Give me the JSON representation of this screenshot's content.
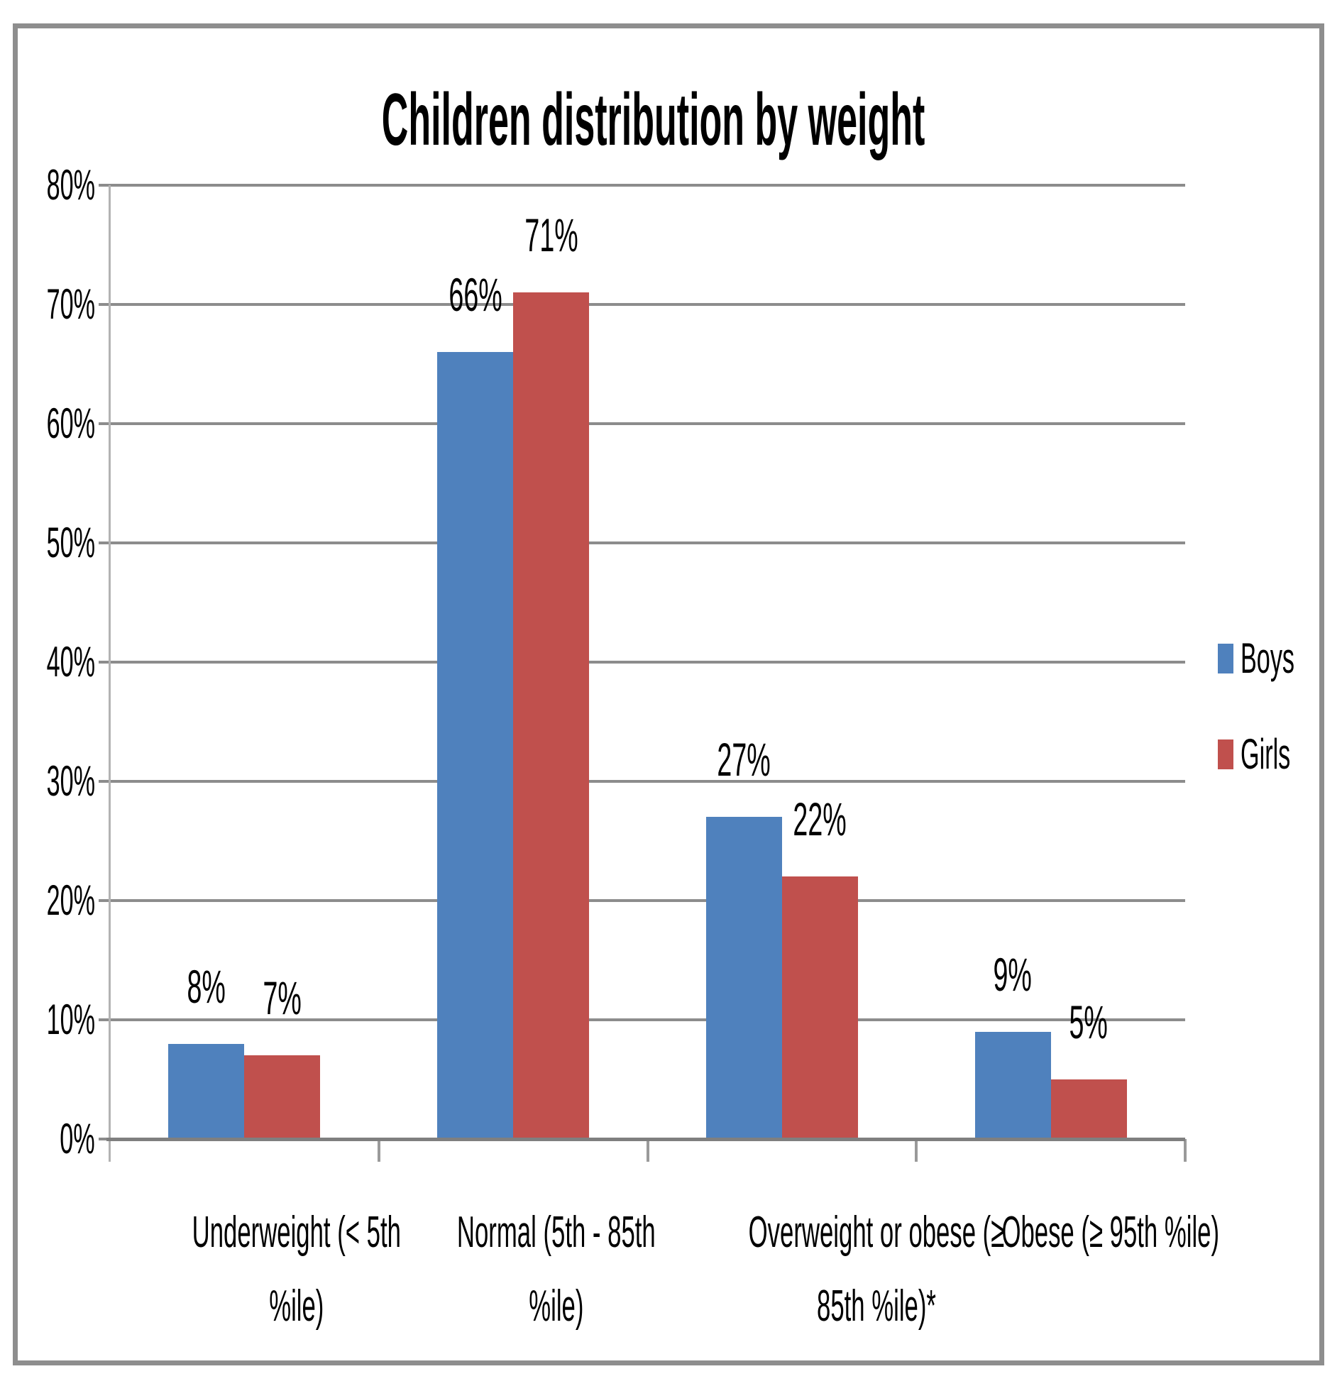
{
  "chart_data": {
    "type": "bar",
    "title": "Children distribution by weight",
    "categories": [
      {
        "label": "Underweight (< 5th %ile)",
        "lines": [
          "Underweight (< 5th",
          "%ile)"
        ]
      },
      {
        "label": "Normal (5th - 85th %ile)",
        "lines": [
          "Normal  (5th - 85th",
          "%ile)"
        ]
      },
      {
        "label": "Overweight or obese (≥ 85th %ile)*",
        "lines": [
          "Overweight or obese (≥",
          "85th %ile)*"
        ]
      },
      {
        "label": "Obese (≥ 95th %ile)",
        "lines": [
          "Obese (≥ 95th %ile)"
        ]
      }
    ],
    "series": [
      {
        "name": "Boys",
        "color": "#4F81BD",
        "values": [
          8,
          66,
          27,
          9
        ],
        "data_labels": [
          "8%",
          "66%",
          "27%",
          "9%"
        ]
      },
      {
        "name": "Girls",
        "color": "#C0504D",
        "values": [
          7,
          71,
          22,
          5
        ],
        "data_labels": [
          "7%",
          "71%",
          "22%",
          "5%"
        ]
      }
    ],
    "ylim": [
      0,
      80
    ],
    "ytick_step": 10,
    "ytick_labels": [
      "0%",
      "10%",
      "20%",
      "30%",
      "40%",
      "50%",
      "60%",
      "70%",
      "80%"
    ],
    "grid": true,
    "legend_position": "right",
    "xlabel": "",
    "ylabel": ""
  }
}
